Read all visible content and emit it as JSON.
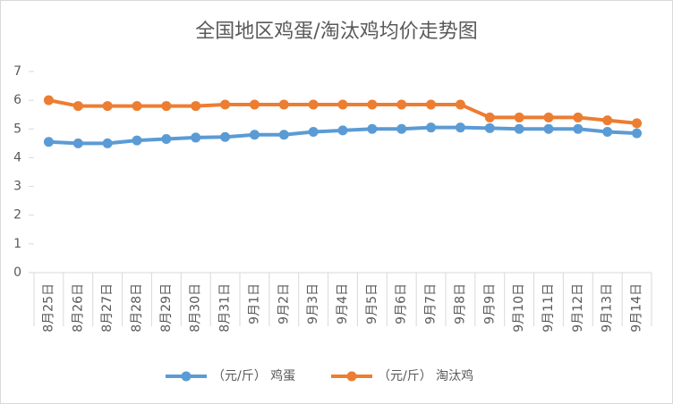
{
  "chart_data": {
    "type": "line",
    "title": "全国地区鸡蛋/淘汰鸡均价走势图",
    "categories": [
      "8月25日",
      "8月26日",
      "8月27日",
      "8月28日",
      "8月29日",
      "8月30日",
      "8月31日",
      "9月1日",
      "9月2日",
      "9月3日",
      "9月4日",
      "9月5日",
      "9月6日",
      "9月7日",
      "9月8日",
      "9月9日",
      "9月10日",
      "9月11日",
      "9月12日",
      "9月13日",
      "9月14日"
    ],
    "series": [
      {
        "name": "（元/斤） 鸡蛋",
        "color": "#5b9bd5",
        "values": [
          4.55,
          4.5,
          4.5,
          4.6,
          4.65,
          4.7,
          4.72,
          4.8,
          4.8,
          4.9,
          4.95,
          5.0,
          5.0,
          5.05,
          5.05,
          5.03,
          5.0,
          5.0,
          5.0,
          4.9,
          4.85
        ]
      },
      {
        "name": "（元/斤） 淘汰鸡",
        "color": "#ed7d31",
        "values": [
          6.0,
          5.8,
          5.8,
          5.8,
          5.8,
          5.8,
          5.85,
          5.85,
          5.85,
          5.85,
          5.85,
          5.85,
          5.85,
          5.85,
          5.85,
          5.4,
          5.4,
          5.4,
          5.4,
          5.3,
          5.2
        ]
      }
    ],
    "ylim": [
      0,
      7
    ],
    "yticks": [
      0,
      1,
      2,
      3,
      4,
      5,
      6,
      7
    ],
    "grid": false,
    "legend": "bottom"
  }
}
